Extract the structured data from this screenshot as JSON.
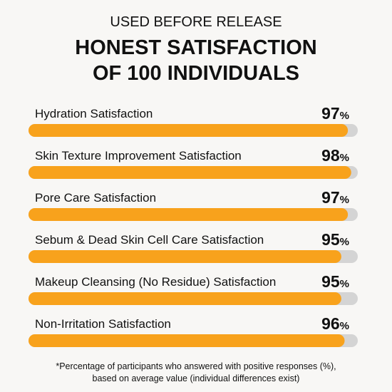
{
  "chart_data": {
    "type": "bar",
    "orientation": "horizontal",
    "subtitle": "USED BEFORE RELEASE",
    "title": [
      "HONEST SATISFACTION",
      "OF 100 INDIVIDUALS"
    ],
    "categories": [
      "Hydration Satisfaction",
      "Skin Texture Improvement Satisfaction",
      "Pore Care Satisfaction",
      "Sebum & Dead Skin Cell Care Satisfaction",
      "Makeup Cleansing (No Residue) Satisfaction",
      "Non-Irritation Satisfaction"
    ],
    "values": [
      97,
      98,
      97,
      95,
      95,
      96
    ],
    "value_labels": [
      "97%",
      "98%",
      "97%",
      "95%",
      "95%",
      "96%"
    ],
    "color": "#f8a21c",
    "track_color": "#d4d4d4",
    "xlim": [
      0,
      100
    ],
    "footnote": [
      "*Percentage of participants who answered with positive responses (%),",
      "based on average value (individual differences exist)"
    ]
  }
}
